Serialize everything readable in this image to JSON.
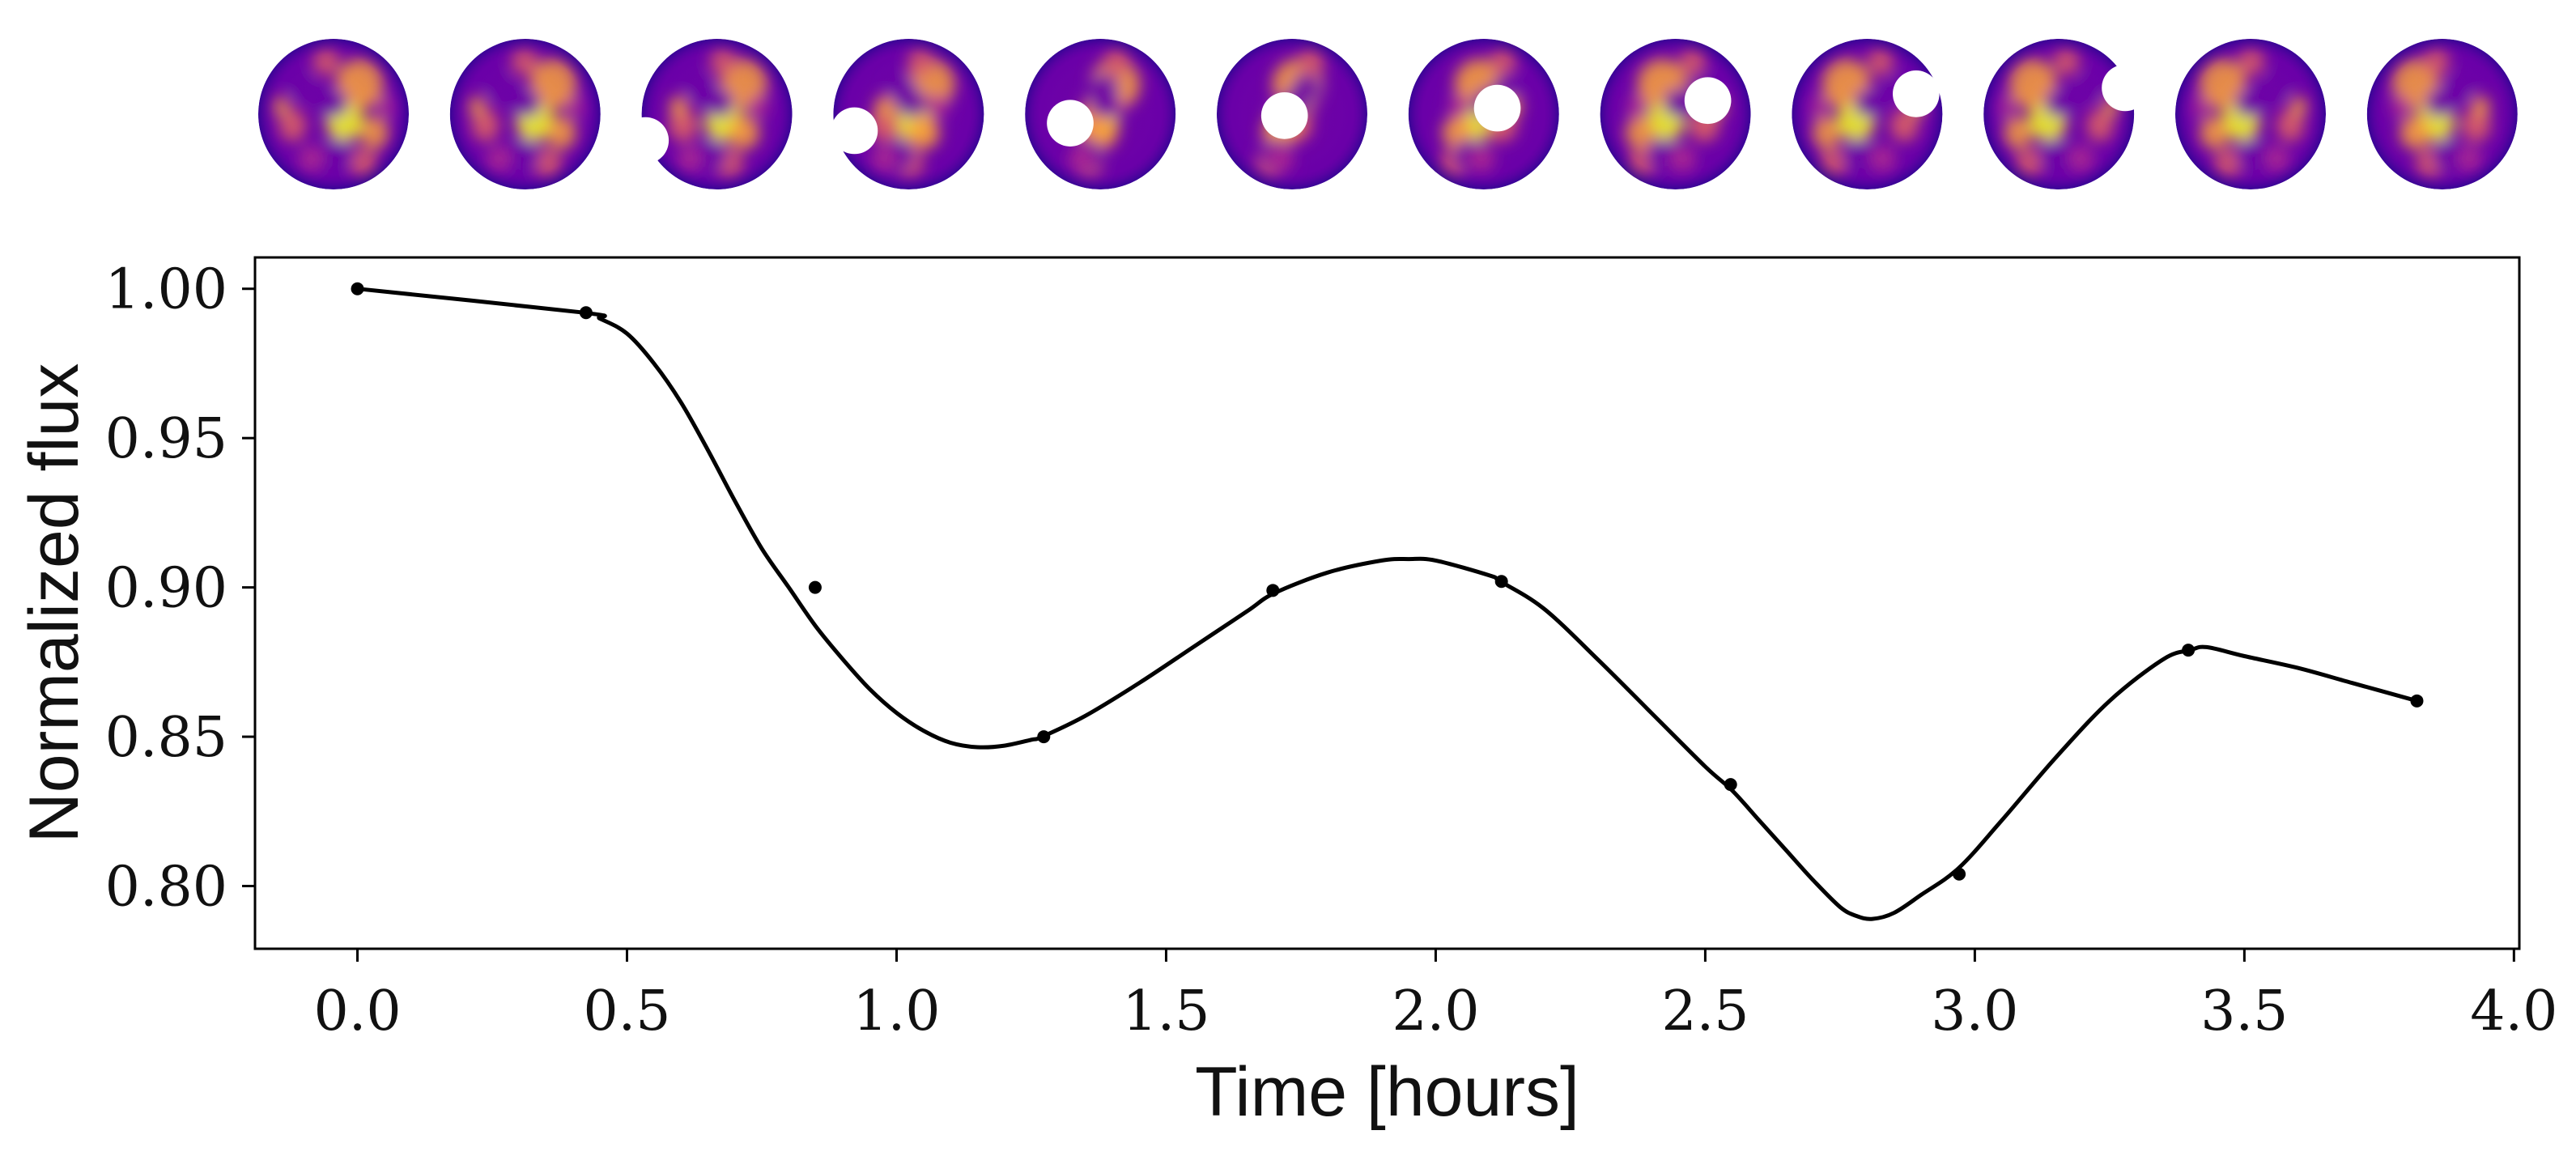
{
  "chart_data": {
    "type": "line",
    "title": "",
    "xlabel": "Time [hours]",
    "ylabel": "Normalized flux",
    "xlim": [
      -0.19,
      4.01
    ],
    "ylim": [
      0.779,
      1.0105
    ],
    "xticks": [
      0.0,
      0.5,
      1.0,
      1.5,
      2.0,
      2.5,
      3.0,
      3.5,
      4.0
    ],
    "xtick_labels": [
      "0.0",
      "0.5",
      "1.0",
      "1.5",
      "2.0",
      "2.5",
      "3.0",
      "3.5",
      "4.0"
    ],
    "yticks": [
      0.8,
      0.85,
      0.9,
      0.95,
      1.0
    ],
    "ytick_labels": [
      "0.80",
      "0.85",
      "0.90",
      "0.95",
      "1.00"
    ],
    "grid": false,
    "legend": "none",
    "series": [
      {
        "name": "model flux curve",
        "x": [
          0.0,
          0.42,
          0.45,
          0.5,
          0.55,
          0.6,
          0.65,
          0.7,
          0.75,
          0.8,
          0.85,
          0.9,
          0.95,
          1.0,
          1.05,
          1.1,
          1.15,
          1.2,
          1.25,
          1.27,
          1.35,
          1.45,
          1.55,
          1.65,
          1.7,
          1.8,
          1.9,
          1.95,
          2.0,
          2.1,
          2.12,
          2.2,
          2.3,
          2.4,
          2.5,
          2.55,
          2.6,
          2.65,
          2.7,
          2.75,
          2.78,
          2.81,
          2.85,
          2.9,
          2.97,
          3.05,
          3.15,
          3.25,
          3.35,
          3.4,
          3.43,
          3.5,
          3.6,
          3.7,
          3.82
        ],
        "values": [
          1.0,
          0.992,
          0.99,
          0.985,
          0.975,
          0.962,
          0.946,
          0.929,
          0.913,
          0.9,
          0.887,
          0.876,
          0.866,
          0.858,
          0.852,
          0.848,
          0.8465,
          0.847,
          0.849,
          0.85,
          0.857,
          0.868,
          0.88,
          0.892,
          0.898,
          0.905,
          0.909,
          0.9095,
          0.909,
          0.904,
          0.902,
          0.893,
          0.876,
          0.858,
          0.84,
          0.832,
          0.822,
          0.812,
          0.802,
          0.793,
          0.79,
          0.789,
          0.791,
          0.797,
          0.806,
          0.822,
          0.843,
          0.862,
          0.876,
          0.879,
          0.88,
          0.877,
          0.873,
          0.868,
          0.862
        ]
      },
      {
        "name": "sampled points",
        "x": [
          0.0,
          0.424,
          0.849,
          1.273,
          1.698,
          2.122,
          2.547,
          2.971,
          3.396,
          3.82
        ],
        "values": [
          1.0,
          0.992,
          0.9,
          0.85,
          0.899,
          0.902,
          0.834,
          0.804,
          0.879,
          0.862
        ]
      }
    ],
    "map_thumbnails": {
      "count": 12,
      "colormap": [
        "#0d0887",
        "#6a00a8",
        "#b12a90",
        "#e16462",
        "#fca636",
        "#f0f921"
      ],
      "occultor_color": "#ffffff",
      "occultor_visible": [
        false,
        false,
        true,
        true,
        true,
        true,
        true,
        true,
        true,
        true,
        false,
        false
      ],
      "occultor_offset_x": [
        0,
        0,
        -0.95,
        -0.72,
        -0.4,
        -0.1,
        0.18,
        0.43,
        0.65,
        0.88,
        0,
        0
      ],
      "occultor_offset_y": [
        0,
        0,
        0.35,
        0.22,
        0.12,
        0.02,
        -0.08,
        -0.18,
        -0.27,
        -0.35,
        0,
        0
      ],
      "occultor_radius": 0.31,
      "map_rotation": [
        0,
        20,
        40,
        60,
        80,
        100,
        120,
        140,
        160,
        180,
        200,
        220
      ]
    },
    "colors": {
      "line": "#000000",
      "marker": "#000000",
      "axes": "#000000",
      "background": "#ffffff"
    }
  }
}
